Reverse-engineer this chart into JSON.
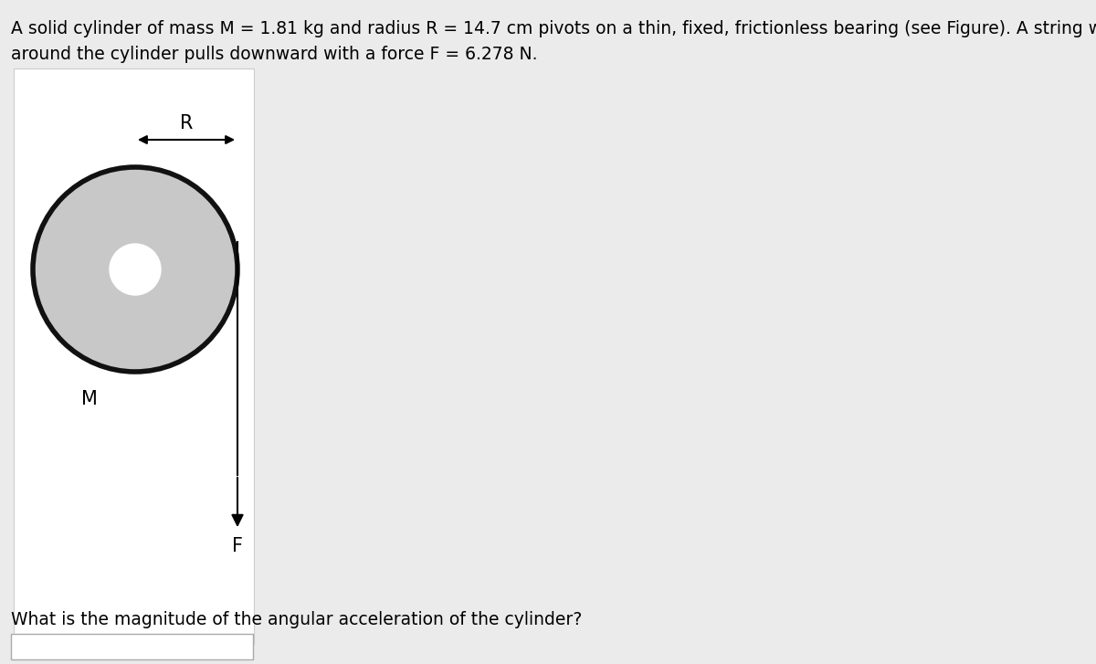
{
  "title_line1": "A solid cylinder of mass M = 1.81 kg and radius R = 14.7 cm pivots on a thin, fixed, frictionless bearing (see Figure). A string wrapped",
  "title_line2": "around the cylinder pulls downward with a force F = 6.278 N.",
  "question": "What is the magnitude of the angular acceleration of the cylinder?",
  "bg_color": "#ebebeb",
  "panel_bg": "#ffffff",
  "cylinder_fill": "#c8c8c8",
  "cylinder_edge": "#111111",
  "hole_fill": "#ffffff",
  "title_fontsize": 13.5,
  "label_fontsize": 15
}
